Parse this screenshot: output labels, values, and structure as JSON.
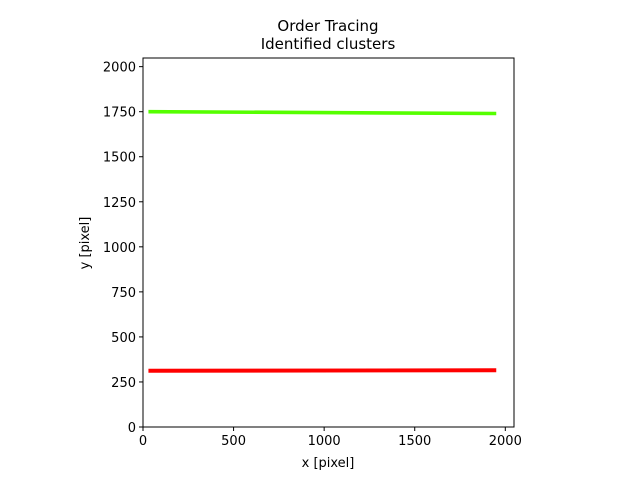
{
  "chart_data": {
    "type": "scatter",
    "title": "Order Tracing",
    "subtitle": "Identified clusters",
    "xlabel": "x [pixel]",
    "ylabel": "y [pixel]",
    "xlim": [
      0,
      2048
    ],
    "ylim": [
      0,
      2048
    ],
    "xticks": [
      0,
      500,
      1000,
      1500,
      2000
    ],
    "yticks": [
      0,
      250,
      500,
      750,
      1000,
      1250,
      1500,
      1750,
      2000
    ],
    "grid": false,
    "series": [
      {
        "color": "#ff0000",
        "x": [
          30,
          1950
        ],
        "y": [
          312,
          315
        ],
        "thickness": 22
      },
      {
        "color": "#55ff00",
        "x": [
          30,
          1950
        ],
        "y": [
          1750,
          1740
        ],
        "thickness": 20
      }
    ]
  }
}
